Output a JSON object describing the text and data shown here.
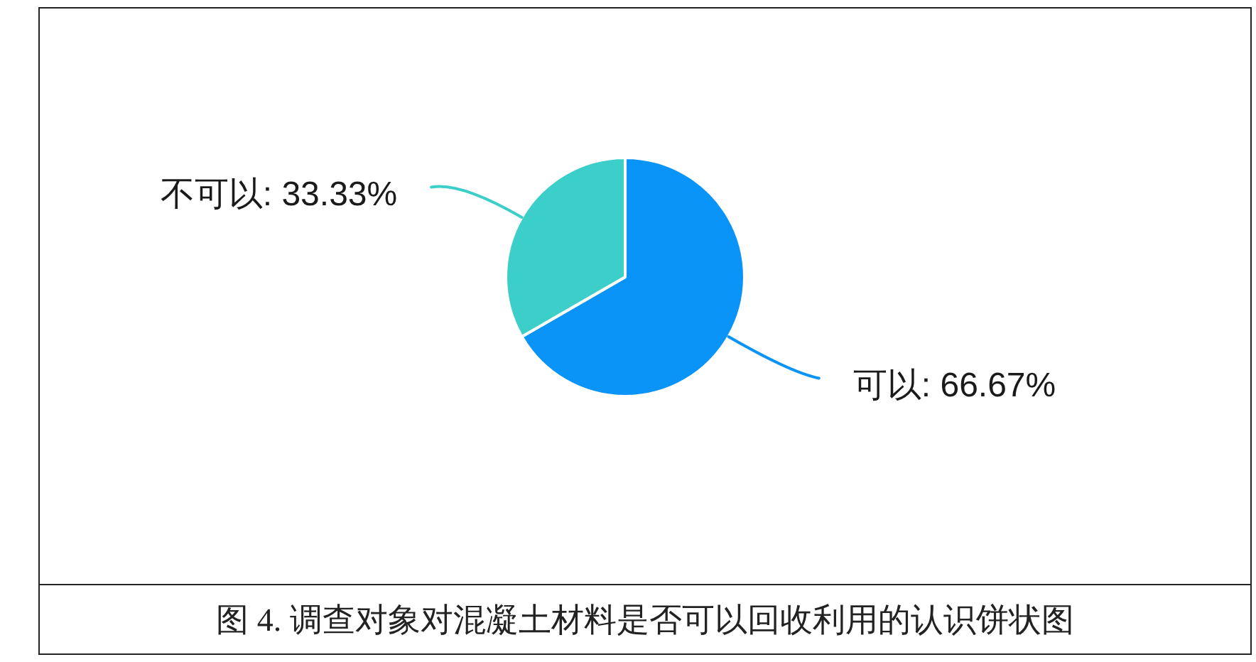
{
  "chart_data": {
    "type": "pie",
    "title": "图 4. 调查对象对混凝土材料是否可以回收利用的认识饼状图",
    "categories": [
      "可以",
      "不可以"
    ],
    "values": [
      66.67,
      33.33
    ],
    "colors": [
      "#0a94f8",
      "#3ccfc9"
    ],
    "value_labels": [
      "66.67%",
      "33.33%"
    ]
  }
}
